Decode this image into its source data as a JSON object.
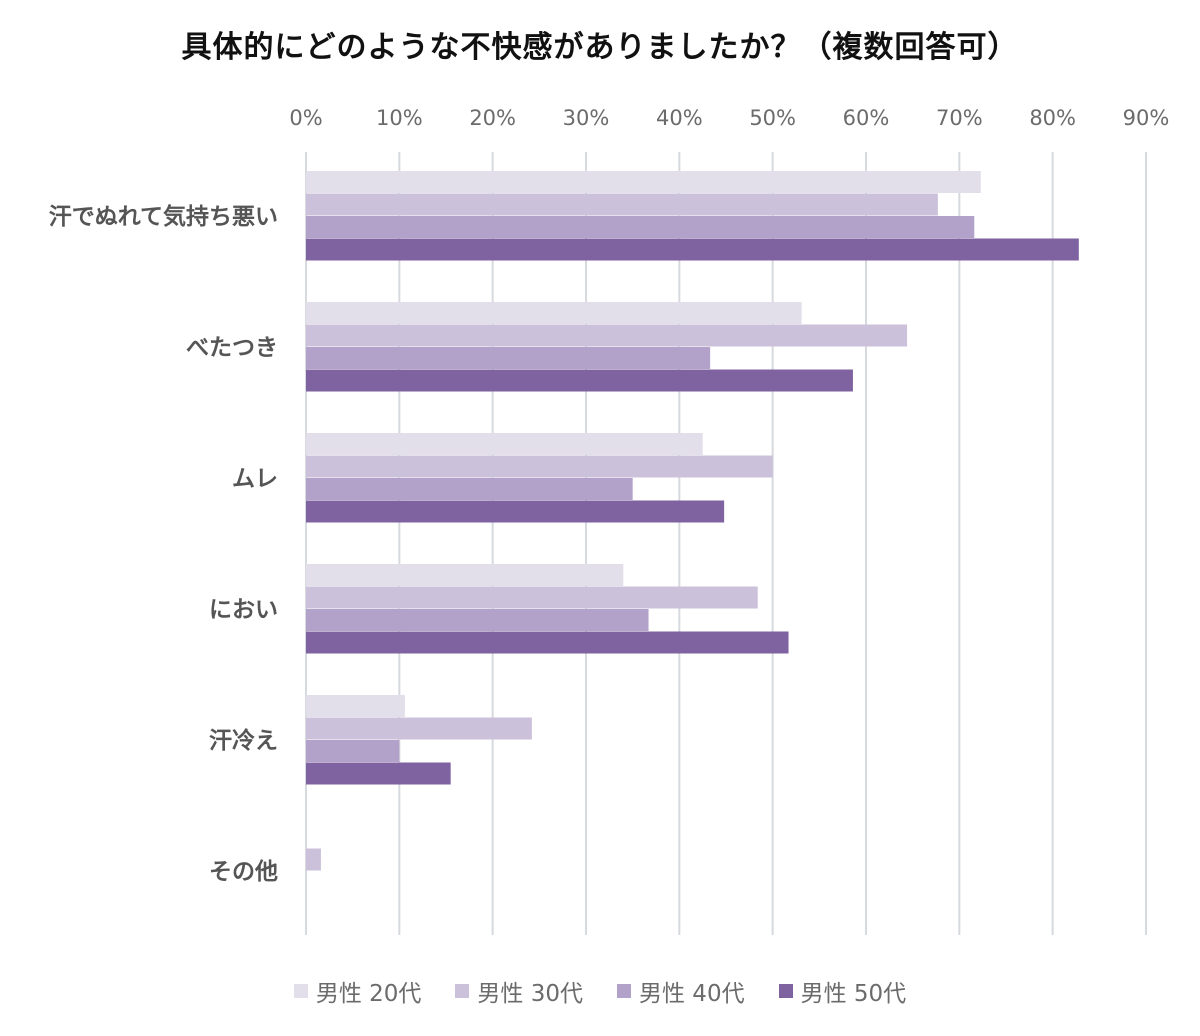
{
  "chart_data": {
    "type": "bar",
    "orientation": "horizontal",
    "title": "具体的にどのような不快感がありましたか？（複数回答可）",
    "categories": [
      "汗でぬれて気持ち悪い",
      "べたつき",
      "ムレ",
      "におい",
      "汗冷え",
      "その他"
    ],
    "series": [
      {
        "name": "男性 20代",
        "color": "#e3dfea",
        "values": [
          72.3,
          53.1,
          42.5,
          34.0,
          10.6,
          0
        ]
      },
      {
        "name": "男性 30代",
        "color": "#cbc1da",
        "values": [
          67.7,
          64.4,
          50.0,
          48.4,
          24.2,
          1.6
        ]
      },
      {
        "name": "男性 40代",
        "color": "#b2a1c8",
        "values": [
          71.6,
          43.3,
          35.0,
          36.7,
          10.0,
          0
        ]
      },
      {
        "name": "男性 50代",
        "color": "#7f62a0",
        "values": [
          82.8,
          58.6,
          44.8,
          51.7,
          15.5,
          0
        ]
      }
    ],
    "xlim": [
      0,
      90
    ],
    "x_ticks": [
      "0%",
      "10%",
      "20%",
      "30%",
      "40%",
      "50%",
      "60%",
      "70%",
      "80%",
      "90%"
    ],
    "axis_position": "top",
    "grid": true,
    "legend_position": "bottom"
  }
}
